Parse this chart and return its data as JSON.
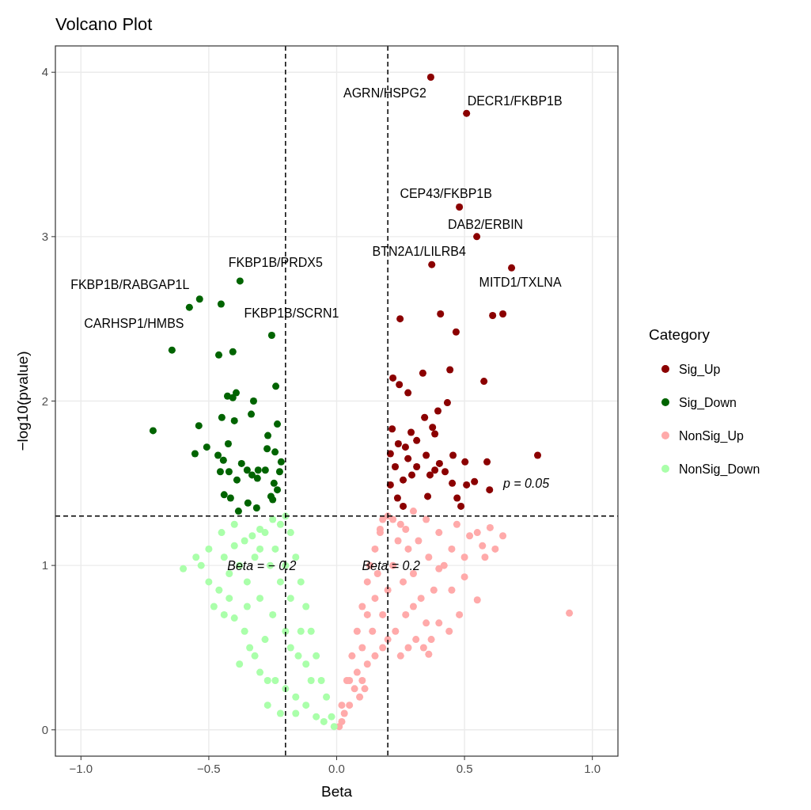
{
  "chart_data": {
    "type": "scatter",
    "title": "Volcano Plot",
    "xlabel": "Beta",
    "ylabel": "−log10(pvalue)",
    "legend_title": "Category",
    "legend": "right",
    "grid": true,
    "marker": "circle",
    "xlim": [
      -1.1,
      1.1
    ],
    "ylim": [
      -0.16,
      4.16
    ],
    "xticks": [
      {
        "value": -1,
        "label": "−1.0"
      },
      {
        "value": -0.5,
        "label": "−0.5"
      },
      {
        "value": 0,
        "label": "0.0"
      },
      {
        "value": 0.5,
        "label": "0.5"
      },
      {
        "value": 1,
        "label": "1.0"
      }
    ],
    "yticks": [
      0,
      1,
      2,
      3,
      4
    ],
    "ref_lines": [
      {
        "axis": "x",
        "value": -0.2,
        "label": "Beta = − 0.2",
        "line_style": "dashed"
      },
      {
        "axis": "x",
        "value": 0.2,
        "label": "Beta = 0.2",
        "line_style": "dashed"
      },
      {
        "axis": "y",
        "value": 1.301,
        "line_style": "dashed"
      }
    ],
    "annotations": [
      {
        "text": "AGRN/HSPG2",
        "x": 0.368,
        "y": 3.97
      },
      {
        "text": "DECR1/FKBP1B",
        "x": 0.508,
        "y": 3.75
      },
      {
        "text": "CEP43/FKBP1B",
        "x": 0.48,
        "y": 3.18
      },
      {
        "text": "DAB2/ERBIN",
        "x": 0.548,
        "y": 3.0
      },
      {
        "text": "BTN2A1/LILRB4",
        "x": 0.372,
        "y": 2.83
      },
      {
        "text": "MITD1/TXLNA",
        "x": 0.684,
        "y": 2.81
      },
      {
        "text": "FKBP1B/PRDX5",
        "x": -0.378,
        "y": 2.73
      },
      {
        "text": "FKBP1B/RABGAP1L",
        "x": -0.536,
        "y": 2.62
      },
      {
        "text": "CARHSP1/HMBS",
        "x": -0.576,
        "y": 2.57
      },
      {
        "text": "FKBP1B/SCRN1",
        "x": -0.452,
        "y": 2.59
      },
      {
        "text": "p = 0.05",
        "x": 0.8,
        "y": 1.301
      }
    ],
    "series": [
      {
        "name": "Sig_Up",
        "color": "#8b0000",
        "x": [
          0.368,
          0.508,
          0.48,
          0.548,
          0.372,
          0.684,
          0.248,
          0.406,
          0.61,
          0.65,
          0.467,
          0.443,
          0.337,
          0.22,
          0.245,
          0.279,
          0.576,
          0.433,
          0.396,
          0.344,
          0.375,
          0.217,
          0.291,
          0.384,
          0.241,
          0.313,
          0.269,
          0.279,
          0.21,
          0.35,
          0.402,
          0.455,
          0.588,
          0.786,
          0.229,
          0.313,
          0.365,
          0.424,
          0.26,
          0.21,
          0.294,
          0.452,
          0.508,
          0.539,
          0.598,
          0.356,
          0.471,
          0.26,
          0.486,
          0.238,
          0.384,
          0.502
        ],
        "values": [
          3.97,
          3.75,
          3.18,
          3.0,
          2.83,
          2.81,
          2.5,
          2.53,
          2.52,
          2.53,
          2.42,
          2.19,
          2.17,
          2.14,
          2.1,
          2.05,
          2.12,
          1.99,
          1.94,
          1.9,
          1.84,
          1.83,
          1.81,
          1.8,
          1.74,
          1.76,
          1.72,
          1.65,
          1.68,
          1.67,
          1.62,
          1.67,
          1.63,
          1.67,
          1.6,
          1.6,
          1.55,
          1.57,
          1.52,
          1.49,
          1.55,
          1.5,
          1.49,
          1.51,
          1.46,
          1.42,
          1.41,
          1.36,
          1.36,
          1.41,
          1.58,
          1.63
        ]
      },
      {
        "name": "Sig_Down",
        "color": "#006400",
        "x": [
          -0.378,
          -0.536,
          -0.576,
          -0.452,
          -0.644,
          -0.254,
          -0.461,
          -0.406,
          -0.238,
          -0.718,
          -0.539,
          -0.554,
          -0.508,
          -0.427,
          -0.406,
          -0.393,
          -0.449,
          -0.4,
          -0.325,
          -0.334,
          -0.424,
          -0.269,
          -0.232,
          -0.272,
          -0.241,
          -0.464,
          -0.443,
          -0.372,
          -0.35,
          -0.331,
          -0.31,
          -0.421,
          -0.455,
          -0.39,
          -0.279,
          -0.223,
          -0.245,
          -0.257,
          -0.44,
          -0.415,
          -0.347,
          -0.384,
          -0.313,
          -0.232,
          -0.25,
          -0.217,
          -0.307
        ],
        "values": [
          2.73,
          2.62,
          2.57,
          2.59,
          2.31,
          2.4,
          2.28,
          2.3,
          2.09,
          1.82,
          1.85,
          1.68,
          1.72,
          2.03,
          2.02,
          2.05,
          1.9,
          1.88,
          2.0,
          1.92,
          1.74,
          1.79,
          1.86,
          1.71,
          1.69,
          1.67,
          1.64,
          1.62,
          1.58,
          1.55,
          1.53,
          1.57,
          1.57,
          1.52,
          1.58,
          1.57,
          1.5,
          1.42,
          1.43,
          1.41,
          1.38,
          1.33,
          1.35,
          1.46,
          1.4,
          1.63,
          1.58
        ]
      },
      {
        "name": "NonSig_Up",
        "color": "#ffaaaa",
        "x": [
          0.01,
          0.02,
          0.03,
          0.05,
          0.07,
          0.1,
          0.12,
          0.15,
          0.18,
          0.2,
          0.23,
          0.27,
          0.3,
          0.34,
          0.31,
          0.36,
          0.37,
          0.02,
          0.04,
          0.06,
          0.08,
          0.1,
          0.12,
          0.13,
          0.15,
          0.17,
          0.18,
          0.2,
          0.22,
          0.25,
          0.91,
          0.55,
          0.5,
          0.45,
          0.48,
          0.6,
          0.57,
          0.52,
          0.47,
          0.4,
          0.35,
          0.28,
          0.3,
          0.42,
          0.38,
          0.33,
          0.26,
          0.22,
          0.2,
          0.18,
          0.15,
          0.14,
          0.1,
          0.08,
          0.05,
          0.25,
          0.28,
          0.4,
          0.44,
          0.35,
          0.32,
          0.65,
          0.55,
          0.58,
          0.62,
          0.5,
          0.45,
          0.4,
          0.36,
          0.24,
          0.27,
          0.16,
          0.12,
          0.09,
          0.11,
          0.3,
          0.17
        ],
        "values": [
          0.02,
          0.05,
          0.1,
          0.15,
          0.25,
          0.3,
          0.4,
          0.45,
          0.5,
          0.55,
          0.6,
          0.7,
          0.75,
          0.5,
          0.55,
          0.46,
          0.55,
          0.15,
          0.3,
          0.45,
          0.6,
          0.75,
          0.9,
          1.0,
          1.1,
          1.22,
          1.28,
          1.3,
          1.28,
          1.25,
          0.71,
          0.79,
          0.93,
          0.85,
          0.7,
          1.23,
          1.12,
          1.18,
          1.25,
          1.2,
          1.28,
          1.1,
          0.95,
          1.0,
          0.85,
          0.8,
          0.9,
          1.0,
          0.85,
          0.7,
          0.8,
          0.6,
          0.5,
          0.35,
          0.3,
          0.45,
          0.5,
          0.65,
          0.6,
          0.65,
          1.15,
          1.18,
          1.2,
          1.05,
          1.1,
          1.05,
          1.1,
          0.98,
          1.05,
          1.15,
          1.22,
          0.95,
          0.7,
          0.2,
          0.25,
          1.33,
          1.2
        ]
      },
      {
        "name": "NonSig_Down",
        "color": "#aaffaa",
        "x": [
          -0.01,
          -0.02,
          -0.04,
          -0.06,
          -0.08,
          -0.1,
          -0.12,
          -0.14,
          -0.16,
          -0.18,
          -0.2,
          -0.22,
          -0.25,
          -0.28,
          -0.3,
          -0.33,
          -0.36,
          -0.4,
          -0.45,
          -0.5,
          -0.55,
          -0.6,
          -0.53,
          -0.5,
          -0.46,
          -0.42,
          -0.48,
          -0.44,
          -0.4,
          -0.36,
          -0.34,
          -0.32,
          -0.3,
          -0.27,
          -0.24,
          -0.2,
          -0.16,
          -0.12,
          -0.08,
          -0.05,
          -0.1,
          -0.15,
          -0.2,
          -0.25,
          -0.3,
          -0.35,
          -0.38,
          -0.32,
          -0.26,
          -0.22,
          -0.18,
          -0.14,
          -0.12,
          -0.2,
          -0.24,
          -0.28,
          -0.35,
          -0.42,
          -0.38,
          -0.27,
          -0.22,
          -0.18,
          -0.3,
          -0.44,
          -0.4,
          -0.16
        ],
        "values": [
          0.02,
          0.08,
          0.2,
          0.3,
          0.45,
          0.6,
          0.75,
          0.9,
          1.05,
          1.2,
          1.3,
          1.25,
          1.28,
          1.2,
          1.22,
          1.18,
          1.15,
          1.12,
          1.2,
          1.1,
          1.05,
          0.98,
          1.0,
          0.9,
          0.85,
          0.8,
          0.75,
          0.7,
          0.68,
          0.6,
          0.5,
          0.45,
          0.35,
          0.3,
          0.3,
          0.25,
          0.2,
          0.15,
          0.08,
          0.05,
          0.3,
          0.45,
          0.6,
          0.7,
          0.8,
          0.9,
          1.0,
          1.05,
          1.0,
          0.9,
          0.8,
          0.6,
          0.4,
          1.0,
          1.1,
          0.55,
          0.75,
          0.95,
          0.4,
          0.15,
          0.1,
          0.5,
          1.1,
          1.05,
          1.25,
          0.1
        ]
      }
    ]
  }
}
